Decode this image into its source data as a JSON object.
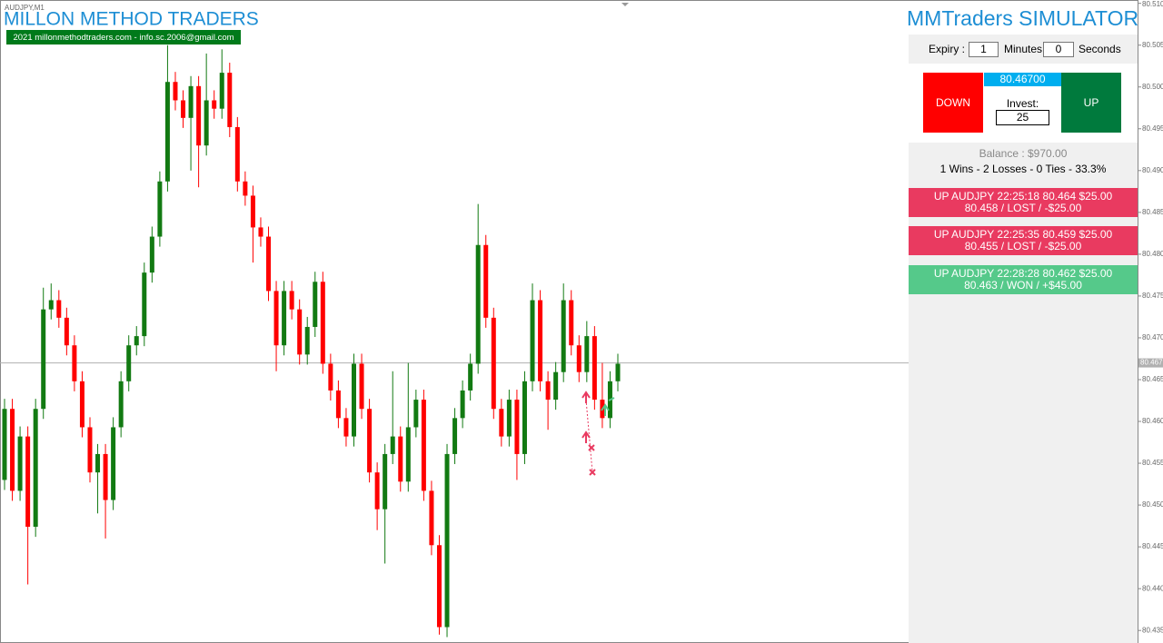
{
  "header": {
    "symbol": "AUDJPY,M1",
    "brand": "MILLON METHOD TRADERS",
    "contact": "2021 millonmethodtraders.com - info.sc.2006@gmail.com"
  },
  "chart_data": {
    "type": "candlestick",
    "up_color": "#127a12",
    "down_color": "#ff0000",
    "price_line_color": "#b0b0b0",
    "ylim": [
      80.4335,
      80.5104
    ],
    "yticks": [
      {
        "value": 80.51,
        "label": "80.510"
      },
      80.505,
      {
        "value": 80.5,
        "label": "80.500"
      },
      80.495,
      {
        "value": 80.49,
        "label": "80.490"
      },
      80.485,
      {
        "value": 80.48,
        "label": "80.480"
      },
      80.475,
      {
        "value": 80.47,
        "label": "80.470"
      },
      80.465,
      {
        "value": 80.46,
        "label": "80.460"
      },
      80.455,
      {
        "value": 80.45,
        "label": "80.450"
      },
      80.445,
      {
        "value": 80.44,
        "label": "80.440"
      },
      80.435
    ],
    "current_price": 80.467,
    "candles": [
      [
        80.453,
        80.4627,
        80.4518,
        80.4615
      ],
      [
        80.4615,
        80.4627,
        80.4505,
        80.4517
      ],
      [
        80.4517,
        80.4594,
        80.4505,
        80.4582
      ],
      [
        80.4582,
        80.4594,
        80.4405,
        80.4474
      ],
      [
        80.4474,
        80.4627,
        80.4462,
        80.4615
      ],
      [
        80.4615,
        80.476,
        80.4603,
        80.4734
      ],
      [
        80.4734,
        80.4765,
        80.4722,
        80.4745
      ],
      [
        80.4745,
        80.4757,
        80.4712,
        80.4724
      ],
      [
        80.4724,
        80.4736,
        80.4679,
        80.4691
      ],
      [
        80.4691,
        80.4703,
        80.4636,
        80.4648
      ],
      [
        80.4648,
        80.466,
        80.4581,
        80.4593
      ],
      [
        80.4593,
        80.4605,
        80.4527,
        80.4539
      ],
      [
        80.4539,
        80.4573,
        80.449,
        80.4561
      ],
      [
        80.4561,
        80.4573,
        80.446,
        80.4506
      ],
      [
        80.4506,
        80.4605,
        80.4494,
        80.4593
      ],
      [
        80.4593,
        80.466,
        80.4581,
        80.4648
      ],
      [
        80.4648,
        80.4703,
        80.4636,
        80.4691
      ],
      [
        80.4691,
        80.4714,
        80.4679,
        80.4702
      ],
      [
        80.4702,
        80.479,
        80.469,
        80.4778
      ],
      [
        80.4778,
        80.4833,
        80.4766,
        80.4821
      ],
      [
        80.4821,
        80.4899,
        80.4809,
        80.4887
      ],
      [
        80.4887,
        80.505,
        80.4875,
        80.5006
      ],
      [
        80.5006,
        80.5018,
        80.4972,
        80.4984
      ],
      [
        80.4984,
        80.4996,
        80.4951,
        80.4963
      ],
      [
        80.4963,
        80.5013,
        80.49,
        80.5001
      ],
      [
        80.5001,
        80.5013,
        80.488,
        80.493
      ],
      [
        80.493,
        80.504,
        80.4918,
        80.4984
      ],
      [
        80.4984,
        80.4996,
        80.4962,
        80.4974
      ],
      [
        80.4974,
        80.5045,
        80.4962,
        80.5017
      ],
      [
        80.5017,
        80.5029,
        80.494,
        80.4952
      ],
      [
        80.4952,
        80.4964,
        80.4875,
        80.4887
      ],
      [
        80.4887,
        80.4899,
        80.4858,
        80.487
      ],
      [
        80.487,
        80.4882,
        80.479,
        80.4832
      ],
      [
        80.4832,
        80.4844,
        80.4809,
        80.4821
      ],
      [
        80.4821,
        80.4833,
        80.4744,
        80.4756
      ],
      [
        80.4756,
        80.4768,
        80.466,
        80.4691
      ],
      [
        80.4691,
        80.4768,
        80.4679,
        80.4756
      ],
      [
        80.4756,
        80.4768,
        80.4722,
        80.4734
      ],
      [
        80.4734,
        80.4746,
        80.4668,
        80.468
      ],
      [
        80.468,
        80.4725,
        80.4668,
        80.4713
      ],
      [
        80.4713,
        80.4779,
        80.4701,
        80.4767
      ],
      [
        80.4767,
        80.4779,
        80.4657,
        80.4669
      ],
      [
        80.4669,
        80.4681,
        80.4625,
        80.4637
      ],
      [
        80.4637,
        80.4649,
        80.4592,
        80.4604
      ],
      [
        80.4604,
        80.4616,
        80.457,
        80.4582
      ],
      [
        80.4582,
        80.4681,
        80.457,
        80.4669
      ],
      [
        80.4669,
        80.4681,
        80.4603,
        80.4615
      ],
      [
        80.4615,
        80.4627,
        80.4527,
        80.4539
      ],
      [
        80.4539,
        80.4551,
        80.447,
        80.4495
      ],
      [
        80.4495,
        80.4573,
        80.443,
        80.4561
      ],
      [
        80.4561,
        80.466,
        80.4549,
        80.4582
      ],
      [
        80.4582,
        80.4594,
        80.4516,
        80.4528
      ],
      [
        80.4528,
        80.467,
        80.4516,
        80.4593
      ],
      [
        80.4593,
        80.4638,
        80.4581,
        80.4626
      ],
      [
        80.4626,
        80.4638,
        80.4505,
        80.4517
      ],
      [
        80.4517,
        80.4529,
        80.444,
        80.4452
      ],
      [
        80.4452,
        80.4464,
        80.4345,
        80.4354
      ],
      [
        80.4354,
        80.4573,
        80.4342,
        80.4561
      ],
      [
        80.4561,
        80.4616,
        80.4549,
        80.4604
      ],
      [
        80.4604,
        80.4649,
        80.4592,
        80.4637
      ],
      [
        80.4637,
        80.4681,
        80.4625,
        80.4669
      ],
      [
        80.4669,
        80.486,
        80.4657,
        80.4811
      ],
      [
        80.4811,
        80.4823,
        80.4712,
        80.4724
      ],
      [
        80.4724,
        80.4736,
        80.4603,
        80.4615
      ],
      [
        80.4615,
        80.4627,
        80.457,
        80.4582
      ],
      [
        80.4582,
        80.4638,
        80.457,
        80.4626
      ],
      [
        80.4626,
        80.4638,
        80.453,
        80.4561
      ],
      [
        80.4561,
        80.466,
        80.4549,
        80.4648
      ],
      [
        80.4648,
        80.4765,
        80.4636,
        80.4745
      ],
      [
        80.4745,
        80.4757,
        80.4636,
        80.4648
      ],
      [
        80.4648,
        80.466,
        80.459,
        80.4626
      ],
      [
        80.4626,
        80.4671,
        80.4614,
        80.4659
      ],
      [
        80.4659,
        80.4765,
        80.4647,
        80.4745
      ],
      [
        80.4745,
        80.4757,
        80.4679,
        80.4691
      ],
      [
        80.4691,
        80.4703,
        80.4647,
        80.4659
      ],
      [
        80.4659,
        80.472,
        80.4647,
        80.4702
      ],
      [
        80.4702,
        80.4714,
        80.4614,
        80.4626
      ],
      [
        80.4626,
        80.467,
        80.4592,
        80.4604
      ],
      [
        80.4604,
        80.466,
        80.4592,
        80.4648
      ],
      [
        80.4648,
        80.4681,
        80.4636,
        80.4669
      ]
    ]
  },
  "simulator": {
    "title": "MMTraders SIMULATOR",
    "expiry_label": "Expiry :",
    "minutes": "1",
    "minutes_label": "Minutes",
    "seconds": "0",
    "seconds_label": "Seconds",
    "down": "DOWN",
    "price": "80.46700",
    "invest_label": "Invest:",
    "invest": "25",
    "up": "UP",
    "balance": "Balance : $970.00",
    "stats": "1 Wins - 2 Losses - 0 Ties - 33.3%",
    "trades": [
      {
        "line1": "UP AUDJPY 22:25:18 80.464 $25.00",
        "line2": "80.458 / LOST / -$25.00",
        "color": "#e93a60"
      },
      {
        "line1": "UP AUDJPY 22:25:35 80.459 $25.00",
        "line2": "80.455 / LOST / -$25.00",
        "color": "#e93a60"
      },
      {
        "line1": "UP AUDJPY 22:28:28 80.462 $25.00",
        "line2": "80.463 / WON / +$45.00",
        "color": "#55c98a"
      }
    ]
  }
}
